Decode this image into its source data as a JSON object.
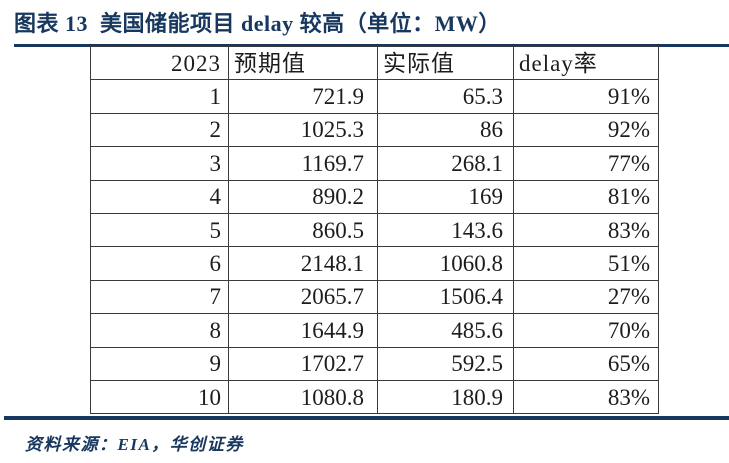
{
  "colors": {
    "accent": "#17375E",
    "table_border": "#3a3a3a",
    "table_text": "#1c1c1c",
    "background": "#ffffff"
  },
  "figure": {
    "title": "图表 13  美国储能项目 delay 较高（单位：MW）",
    "source_note": "资料来源：EIA，华创证券"
  },
  "table": {
    "headers": [
      "2023",
      "预期值",
      "实际值",
      "delay率"
    ],
    "rows": [
      [
        "1",
        "721.9",
        "65.3",
        "91%"
      ],
      [
        "2",
        "1025.3",
        "86",
        "92%"
      ],
      [
        "3",
        "1169.7",
        "268.1",
        "77%"
      ],
      [
        "4",
        "890.2",
        "169",
        "81%"
      ],
      [
        "5",
        "860.5",
        "143.6",
        "83%"
      ],
      [
        "6",
        "2148.1",
        "1060.8",
        "51%"
      ],
      [
        "7",
        "2065.7",
        "1506.4",
        "27%"
      ],
      [
        "8",
        "1644.9",
        "485.6",
        "70%"
      ],
      [
        "9",
        "1702.7",
        "592.5",
        "65%"
      ],
      [
        "10",
        "1080.8",
        "180.9",
        "83%"
      ]
    ]
  },
  "chart_data": {
    "type": "table",
    "title": "图表 13 美国储能项目 delay 较高（单位：MW）",
    "unit": "MW",
    "columns": [
      "2023",
      "预期值",
      "实际值",
      "delay率"
    ],
    "rows": [
      {
        "period": "1",
        "expected": 721.9,
        "actual": 65.3,
        "delay_rate_pct": 91
      },
      {
        "period": "2",
        "expected": 1025.3,
        "actual": 86,
        "delay_rate_pct": 92
      },
      {
        "period": "3",
        "expected": 1169.7,
        "actual": 268.1,
        "delay_rate_pct": 77
      },
      {
        "period": "4",
        "expected": 890.2,
        "actual": 169,
        "delay_rate_pct": 81
      },
      {
        "period": "5",
        "expected": 860.5,
        "actual": 143.6,
        "delay_rate_pct": 83
      },
      {
        "period": "6",
        "expected": 2148.1,
        "actual": 1060.8,
        "delay_rate_pct": 51
      },
      {
        "period": "7",
        "expected": 2065.7,
        "actual": 1506.4,
        "delay_rate_pct": 27
      },
      {
        "period": "8",
        "expected": 1644.9,
        "actual": 485.6,
        "delay_rate_pct": 70
      },
      {
        "period": "9",
        "expected": 1702.7,
        "actual": 592.5,
        "delay_rate_pct": 65
      },
      {
        "period": "10",
        "expected": 1080.8,
        "actual": 180.9,
        "delay_rate_pct": 83
      }
    ],
    "source": "EIA，华创证券"
  }
}
